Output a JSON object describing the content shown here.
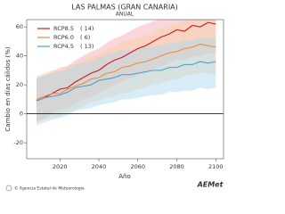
{
  "chart_data": {
    "type": "line",
    "title": "LAS PALMAS (GRAN CANARIA)",
    "subtitle": "ANUAL",
    "xlabel": "Año",
    "ylabel": "Cambio en días cálidos (%)",
    "source": "© Agencia Estatal de Meteorología",
    "logo": "AEMet",
    "x": [
      2008,
      2012,
      2016,
      2020,
      2024,
      2028,
      2032,
      2036,
      2040,
      2044,
      2048,
      2052,
      2056,
      2060,
      2064,
      2068,
      2072,
      2076,
      2080,
      2084,
      2088,
      2092,
      2096,
      2100
    ],
    "xlim": [
      2003,
      2104
    ],
    "xticks": [
      2020,
      2040,
      2060,
      2080,
      2100
    ],
    "ylim": [
      -31,
      65
    ],
    "yticks": [
      -20,
      0,
      20,
      40,
      60
    ],
    "reference_line": 0,
    "legend": "upper left",
    "series": [
      {
        "name": "RCP8.5",
        "count_label": "( 14)",
        "color": "#d7191c",
        "band_color": "#f4a6b4",
        "values": [
          9,
          11,
          14,
          17,
          18,
          22,
          25,
          28,
          30,
          34,
          37,
          39,
          42,
          45,
          47,
          50,
          53,
          55,
          58,
          57,
          61,
          60,
          63,
          62
        ],
        "lower": [
          -5,
          -3,
          0,
          3,
          4,
          7,
          10,
          12,
          14,
          17,
          20,
          22,
          24,
          27,
          28,
          31,
          33,
          35,
          37,
          37,
          40,
          40,
          42,
          42
        ],
        "upper": [
          24,
          26,
          29,
          32,
          33,
          37,
          40,
          43,
          45,
          49,
          52,
          54,
          57,
          60,
          62,
          64,
          65,
          65,
          65,
          65,
          65,
          65,
          65,
          65
        ]
      },
      {
        "name": "RCP6.0",
        "count_label": "(  6)",
        "color": "#f08a3c",
        "band_color": "#f9cfa0",
        "values": [
          10,
          12,
          14,
          14,
          17,
          19,
          21,
          24,
          25,
          28,
          29,
          32,
          33,
          35,
          36,
          38,
          40,
          42,
          43,
          45,
          46,
          48,
          47,
          46
        ],
        "lower": [
          -6,
          -4,
          -2,
          -2,
          1,
          3,
          5,
          8,
          9,
          11,
          12,
          14,
          15,
          17,
          18,
          20,
          21,
          23,
          24,
          26,
          27,
          28,
          28,
          27
        ],
        "upper": [
          26,
          28,
          30,
          30,
          33,
          35,
          37,
          40,
          41,
          45,
          46,
          50,
          51,
          53,
          54,
          56,
          59,
          61,
          62,
          64,
          65,
          65,
          65,
          65
        ]
      },
      {
        "name": "RCP4.5",
        "count_label": "( 13)",
        "color": "#3fa0d8",
        "band_color": "#a9d6ef",
        "values": [
          9,
          11,
          12,
          13,
          15,
          18,
          19,
          20,
          23,
          24,
          25,
          27,
          27,
          28,
          29,
          30,
          30,
          32,
          32,
          34,
          34,
          36,
          35,
          36
        ],
        "lower": [
          -8,
          -6,
          -4,
          -3,
          -1,
          2,
          3,
          4,
          6,
          7,
          8,
          10,
          10,
          11,
          12,
          13,
          13,
          15,
          15,
          16,
          16,
          18,
          17,
          18
        ],
        "upper": [
          25,
          27,
          28,
          29,
          31,
          34,
          35,
          36,
          39,
          41,
          42,
          44,
          44,
          45,
          46,
          47,
          47,
          49,
          49,
          51,
          51,
          53,
          52,
          53
        ]
      }
    ]
  }
}
